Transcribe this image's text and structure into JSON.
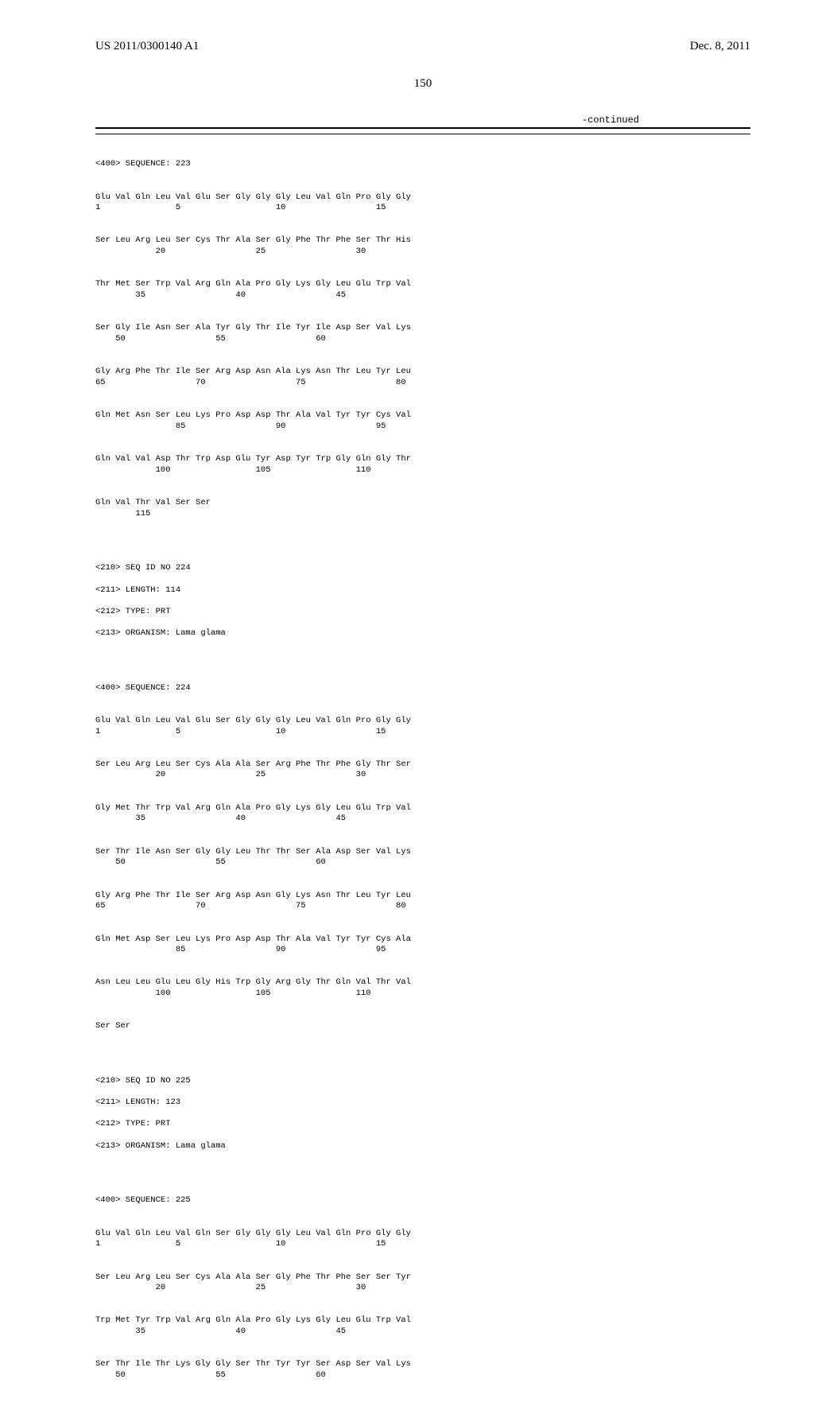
{
  "header": {
    "left": "US 2011/0300140 A1",
    "right": "Dec. 8, 2011"
  },
  "page_number": "150",
  "continued_label": "-continued",
  "seq223": {
    "header": "<400> SEQUENCE: 223",
    "row1_aa": "Glu Val Gln Leu Val Glu Ser Gly Gly Gly Leu Val Gln Pro Gly Gly",
    "row1_no": "1               5                   10                  15",
    "row2_aa": "Ser Leu Arg Leu Ser Cys Thr Ala Ser Gly Phe Thr Phe Ser Thr His",
    "row2_no": "            20                  25                  30",
    "row3_aa": "Thr Met Ser Trp Val Arg Gln Ala Pro Gly Lys Gly Leu Glu Trp Val",
    "row3_no": "        35                  40                  45",
    "row4_aa": "Ser Gly Ile Asn Ser Ala Tyr Gly Thr Ile Tyr Ile Asp Ser Val Lys",
    "row4_no": "    50                  55                  60",
    "row5_aa": "Gly Arg Phe Thr Ile Ser Arg Asp Asn Ala Lys Asn Thr Leu Tyr Leu",
    "row5_no": "65                  70                  75                  80",
    "row6_aa": "Gln Met Asn Ser Leu Lys Pro Asp Asp Thr Ala Val Tyr Tyr Cys Val",
    "row6_no": "                85                  90                  95",
    "row7_aa": "Gln Val Val Asp Thr Trp Asp Glu Tyr Asp Tyr Trp Gly Gln Gly Thr",
    "row7_no": "            100                 105                 110",
    "row8_aa": "Gln Val Thr Val Ser Ser",
    "row8_no": "        115"
  },
  "seq224meta": {
    "l1": "<210> SEQ ID NO 224",
    "l2": "<211> LENGTH: 114",
    "l3": "<212> TYPE: PRT",
    "l4": "<213> ORGANISM: Lama glama"
  },
  "seq224": {
    "header": "<400> SEQUENCE: 224",
    "row1_aa": "Glu Val Gln Leu Val Glu Ser Gly Gly Gly Leu Val Gln Pro Gly Gly",
    "row1_no": "1               5                   10                  15",
    "row2_aa": "Ser Leu Arg Leu Ser Cys Ala Ala Ser Arg Phe Thr Phe Gly Thr Ser",
    "row2_no": "            20                  25                  30",
    "row3_aa": "Gly Met Thr Trp Val Arg Gln Ala Pro Gly Lys Gly Leu Glu Trp Val",
    "row3_no": "        35                  40                  45",
    "row4_aa": "Ser Thr Ile Asn Ser Gly Gly Leu Thr Thr Ser Ala Asp Ser Val Lys",
    "row4_no": "    50                  55                  60",
    "row5_aa": "Gly Arg Phe Thr Ile Ser Arg Asp Asn Gly Lys Asn Thr Leu Tyr Leu",
    "row5_no": "65                  70                  75                  80",
    "row6_aa": "Gln Met Asp Ser Leu Lys Pro Asp Asp Thr Ala Val Tyr Tyr Cys Ala",
    "row6_no": "                85                  90                  95",
    "row7_aa": "Asn Leu Leu Glu Leu Gly His Trp Gly Arg Gly Thr Gln Val Thr Val",
    "row7_no": "            100                 105                 110",
    "row8_aa": "Ser Ser",
    "row8_no": ""
  },
  "seq225meta": {
    "l1": "<210> SEQ ID NO 225",
    "l2": "<211> LENGTH: 123",
    "l3": "<212> TYPE: PRT",
    "l4": "<213> ORGANISM: Lama glama"
  },
  "seq225": {
    "header": "<400> SEQUENCE: 225",
    "row1_aa": "Glu Val Gln Leu Val Gln Ser Gly Gly Gly Leu Val Gln Pro Gly Gly",
    "row1_no": "1               5                   10                  15",
    "row2_aa": "Ser Leu Arg Leu Ser Cys Ala Ala Ser Gly Phe Thr Phe Ser Ser Tyr",
    "row2_no": "            20                  25                  30",
    "row3_aa": "Trp Met Tyr Trp Val Arg Gln Ala Pro Gly Lys Gly Leu Glu Trp Val",
    "row3_no": "        35                  40                  45",
    "row4_aa": "Ser Thr Ile Thr Lys Gly Gly Ser Thr Tyr Tyr Ser Asp Ser Val Lys",
    "row4_no": "    50                  55                  60"
  },
  "style": {
    "background_color": "#ffffff",
    "text_color": "#000000",
    "mono_font": "Courier New",
    "serif_font": "Times New Roman",
    "header_fontsize": 15,
    "pagenum_fontsize": 15,
    "seq_fontsize": 10.5,
    "rule_color": "#000000"
  }
}
